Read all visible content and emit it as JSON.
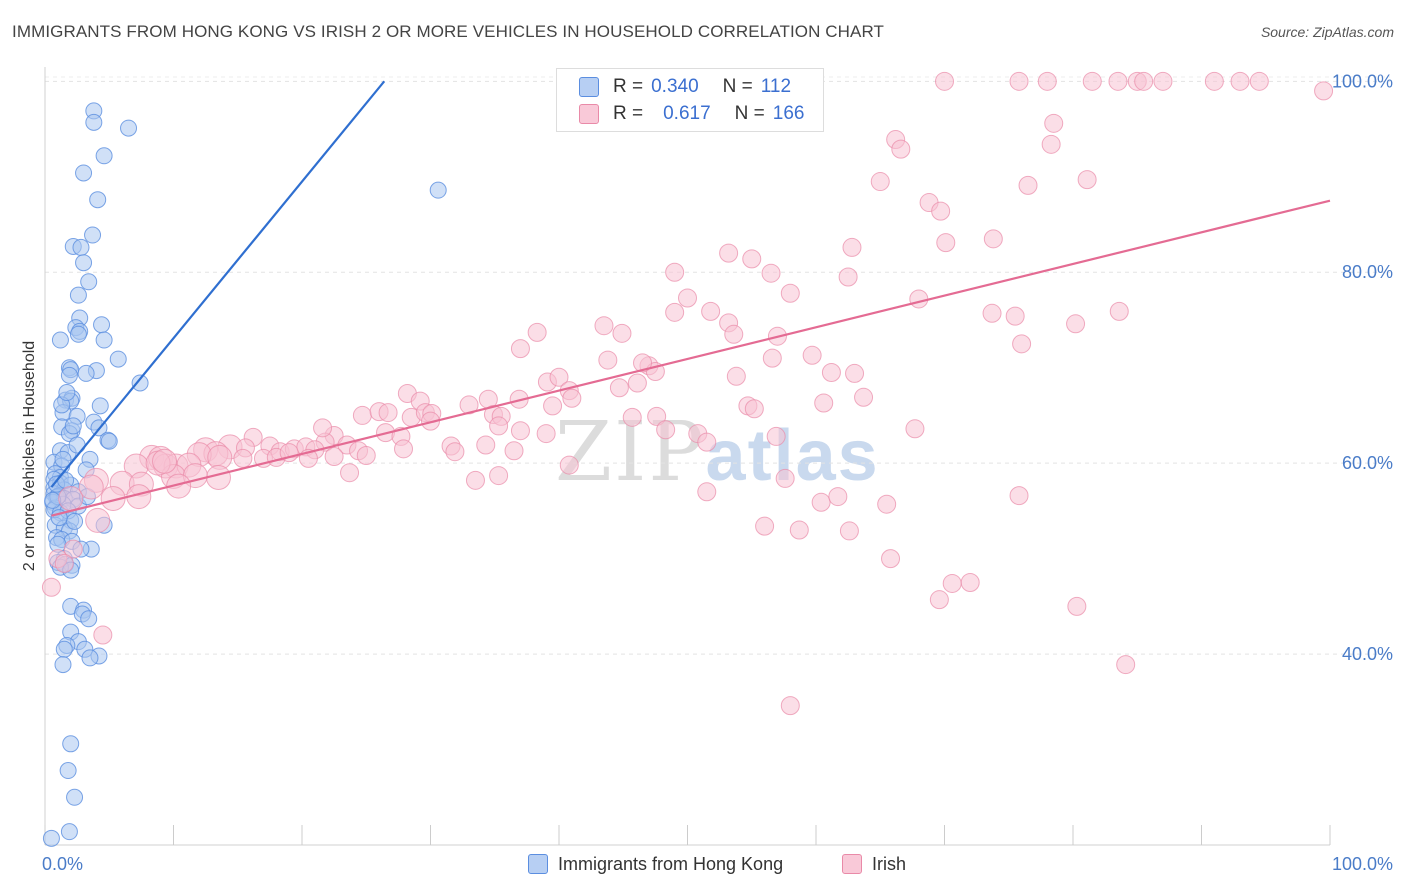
{
  "title": "IMMIGRANTS FROM HONG KONG VS IRISH 2 OR MORE VEHICLES IN HOUSEHOLD CORRELATION CHART",
  "source": "Source: ZipAtlas.com",
  "watermark": {
    "zip": "ZIP",
    "atlas": "atlas"
  },
  "colors": {
    "blue": "#5b8ee0",
    "blue_fill": "#aac6f0",
    "pink": "#e98aa8",
    "pink_fill": "#f7c3d3",
    "blue_line": "#2f6fd0",
    "pink_line": "#e46b93"
  },
  "legend": {
    "blue": {
      "r_label": "R =",
      "r_value": "0.340",
      "n_label": "N =",
      "n_value": "112"
    },
    "pink": {
      "r_label": "R =",
      "r_value": "0.617",
      "n_label": "N =",
      "n_value": "166"
    }
  },
  "bottom_legend": [
    "Immigrants from Hong Kong",
    "Irish"
  ],
  "chart_data": {
    "type": "scatter",
    "xlabel": "",
    "ylabel": "2 or more Vehicles in Household",
    "xlim": [
      0,
      100
    ],
    "ylim": [
      20,
      101.5
    ],
    "x_tick_labels": [
      "0.0%",
      "100.0%"
    ],
    "y_tick_labels": [
      "40.0%",
      "60.0%",
      "80.0%",
      "100.0%"
    ],
    "y_ticks": [
      40,
      60,
      80,
      100
    ],
    "grid": true,
    "legend_placement": "top-center",
    "series": [
      {
        "name": "Immigrants from Hong Kong",
        "r": 0.34,
        "n": 112,
        "trend": {
          "x": [
            0.5,
            26.4
          ],
          "y": [
            57.5,
            100
          ]
        },
        "points": [
          [
            3.8,
            96.9
          ],
          [
            3.8,
            95.7
          ],
          [
            6.5,
            95.1
          ],
          [
            4.6,
            92.2
          ],
          [
            3.0,
            90.4
          ],
          [
            4.1,
            87.6
          ],
          [
            30.6,
            88.6
          ],
          [
            3.7,
            83.9
          ],
          [
            2.2,
            82.7
          ],
          [
            2.8,
            82.6
          ],
          [
            3.0,
            81.0
          ],
          [
            3.4,
            79.0
          ],
          [
            2.6,
            77.6
          ],
          [
            2.7,
            75.2
          ],
          [
            2.4,
            74.2
          ],
          [
            4.4,
            74.5
          ],
          [
            2.7,
            73.8
          ],
          [
            2.6,
            73.5
          ],
          [
            1.2,
            72.9
          ],
          [
            4.6,
            72.9
          ],
          [
            5.7,
            70.9
          ],
          [
            1.9,
            70.0
          ],
          [
            2.0,
            69.8
          ],
          [
            4.0,
            69.7
          ],
          [
            1.9,
            69.2
          ],
          [
            3.2,
            69.4
          ],
          [
            7.4,
            68.4
          ],
          [
            1.6,
            66.6
          ],
          [
            2.1,
            66.8
          ],
          [
            2.0,
            66.5
          ],
          [
            4.3,
            66.0
          ],
          [
            1.4,
            65.3
          ],
          [
            2.5,
            64.9
          ],
          [
            3.8,
            64.3
          ],
          [
            1.3,
            63.8
          ],
          [
            4.2,
            63.7
          ],
          [
            2.1,
            63.4
          ],
          [
            1.9,
            63.1
          ],
          [
            4.9,
            62.4
          ],
          [
            5.0,
            62.3
          ],
          [
            1.2,
            61.3
          ],
          [
            1.8,
            61.1
          ],
          [
            3.5,
            60.4
          ],
          [
            0.7,
            60.1
          ],
          [
            1.3,
            59.7
          ],
          [
            3.2,
            59.3
          ],
          [
            0.8,
            58.9
          ],
          [
            1.2,
            58.5
          ],
          [
            0.7,
            58.3
          ],
          [
            1.2,
            57.9
          ],
          [
            2.0,
            57.7
          ],
          [
            0.7,
            57.4
          ],
          [
            1.5,
            57.2
          ],
          [
            2.6,
            57.0
          ],
          [
            0.7,
            56.8
          ],
          [
            1.1,
            56.6
          ],
          [
            0.9,
            56.4
          ],
          [
            1.5,
            56.3
          ],
          [
            2.2,
            56.2
          ],
          [
            0.6,
            55.9
          ],
          [
            1.4,
            55.7
          ],
          [
            2.6,
            55.5
          ],
          [
            0.8,
            55.3
          ],
          [
            0.7,
            55.1
          ],
          [
            1.2,
            54.8
          ],
          [
            2.0,
            54.0
          ],
          [
            4.6,
            53.5
          ],
          [
            0.8,
            53.5
          ],
          [
            1.5,
            53.2
          ],
          [
            1.9,
            52.9
          ],
          [
            0.9,
            52.2
          ],
          [
            1.3,
            52.0
          ],
          [
            2.1,
            51.8
          ],
          [
            1.0,
            51.5
          ],
          [
            3.6,
            51.0
          ],
          [
            2.8,
            51.0
          ],
          [
            1.5,
            50.0
          ],
          [
            1.0,
            49.6
          ],
          [
            1.6,
            49.4
          ],
          [
            2.1,
            49.3
          ],
          [
            1.2,
            49.1
          ],
          [
            2.0,
            48.8
          ],
          [
            2.0,
            45.0
          ],
          [
            3.0,
            44.6
          ],
          [
            2.9,
            44.2
          ],
          [
            3.4,
            43.7
          ],
          [
            2.0,
            42.3
          ],
          [
            2.6,
            41.3
          ],
          [
            1.7,
            40.9
          ],
          [
            1.5,
            40.5
          ],
          [
            3.1,
            40.5
          ],
          [
            4.2,
            39.8
          ],
          [
            3.5,
            39.6
          ],
          [
            1.4,
            38.9
          ],
          [
            2.0,
            30.6
          ],
          [
            1.8,
            27.8
          ],
          [
            2.3,
            25.0
          ],
          [
            1.9,
            21.4
          ],
          [
            0.5,
            20.7
          ],
          [
            1.3,
            66.1
          ],
          [
            2.5,
            61.9
          ],
          [
            1.0,
            56.5
          ],
          [
            1.8,
            55.0
          ],
          [
            3.3,
            56.5
          ],
          [
            0.9,
            57.8
          ],
          [
            1.6,
            58.2
          ],
          [
            2.3,
            53.9
          ],
          [
            1.1,
            54.3
          ],
          [
            0.6,
            56.1
          ],
          [
            1.4,
            60.4
          ],
          [
            2.2,
            63.9
          ],
          [
            1.7,
            67.4
          ]
        ]
      },
      {
        "name": "Irish",
        "r": 0.617,
        "n": 166,
        "trend": {
          "x": [
            0.5,
            100
          ],
          "y": [
            54.5,
            87.5
          ]
        },
        "points": [
          [
            70.0,
            100
          ],
          [
            75.8,
            100
          ],
          [
            78.0,
            100
          ],
          [
            81.5,
            100
          ],
          [
            83.5,
            100
          ],
          [
            85.0,
            100
          ],
          [
            85.5,
            100
          ],
          [
            87.0,
            100
          ],
          [
            91.0,
            100
          ],
          [
            93.0,
            100
          ],
          [
            94.5,
            100
          ],
          [
            99.5,
            99.0
          ],
          [
            66.2,
            93.9
          ],
          [
            66.6,
            92.9
          ],
          [
            78.5,
            95.6
          ],
          [
            78.3,
            93.4
          ],
          [
            65.0,
            89.5
          ],
          [
            76.5,
            89.1
          ],
          [
            81.1,
            89.7
          ],
          [
            68.8,
            87.3
          ],
          [
            69.7,
            86.4
          ],
          [
            70.1,
            83.1
          ],
          [
            73.8,
            83.5
          ],
          [
            62.8,
            82.6
          ],
          [
            53.2,
            82.0
          ],
          [
            55.0,
            81.4
          ],
          [
            49.0,
            80.0
          ],
          [
            56.5,
            79.9
          ],
          [
            62.5,
            79.5
          ],
          [
            68.0,
            77.2
          ],
          [
            58.0,
            77.8
          ],
          [
            50.0,
            77.3
          ],
          [
            49.0,
            75.8
          ],
          [
            51.8,
            75.9
          ],
          [
            73.7,
            75.7
          ],
          [
            75.5,
            75.4
          ],
          [
            80.2,
            74.6
          ],
          [
            76.0,
            72.5
          ],
          [
            83.6,
            75.9
          ],
          [
            43.5,
            74.4
          ],
          [
            44.9,
            73.6
          ],
          [
            53.2,
            74.7
          ],
          [
            38.3,
            73.7
          ],
          [
            57.0,
            73.3
          ],
          [
            37.0,
            72.0
          ],
          [
            53.6,
            73.5
          ],
          [
            59.7,
            71.3
          ],
          [
            43.8,
            70.8
          ],
          [
            56.6,
            71.0
          ],
          [
            47.0,
            70.2
          ],
          [
            47.5,
            69.6
          ],
          [
            46.5,
            70.5
          ],
          [
            53.8,
            69.1
          ],
          [
            61.2,
            69.5
          ],
          [
            63.0,
            69.4
          ],
          [
            39.1,
            68.5
          ],
          [
            40.0,
            69.0
          ],
          [
            44.7,
            67.9
          ],
          [
            46.1,
            68.4
          ],
          [
            40.8,
            67.6
          ],
          [
            28.2,
            67.3
          ],
          [
            29.2,
            66.5
          ],
          [
            33.0,
            66.1
          ],
          [
            34.5,
            66.7
          ],
          [
            36.9,
            66.7
          ],
          [
            41.0,
            66.8
          ],
          [
            39.5,
            66.0
          ],
          [
            54.7,
            66.0
          ],
          [
            55.2,
            65.7
          ],
          [
            60.6,
            66.3
          ],
          [
            63.7,
            66.9
          ],
          [
            24.7,
            65.0
          ],
          [
            26.0,
            65.4
          ],
          [
            26.7,
            65.3
          ],
          [
            28.5,
            64.8
          ],
          [
            29.6,
            65.3
          ],
          [
            30.1,
            65.2
          ],
          [
            34.9,
            65.1
          ],
          [
            35.5,
            64.9
          ],
          [
            47.6,
            64.9
          ],
          [
            45.7,
            64.8
          ],
          [
            26.5,
            63.2
          ],
          [
            27.7,
            62.8
          ],
          [
            30.0,
            64.4
          ],
          [
            35.3,
            63.9
          ],
          [
            37.0,
            63.4
          ],
          [
            39.0,
            63.1
          ],
          [
            48.3,
            63.5
          ],
          [
            50.8,
            63.1
          ],
          [
            51.5,
            62.2
          ],
          [
            56.9,
            62.8
          ],
          [
            67.7,
            63.6
          ],
          [
            22.5,
            62.9
          ],
          [
            21.8,
            62.2
          ],
          [
            23.5,
            61.9
          ],
          [
            16.2,
            62.7
          ],
          [
            17.5,
            61.8
          ],
          [
            18.3,
            61.2
          ],
          [
            19.4,
            61.5
          ],
          [
            20.3,
            61.7
          ],
          [
            14.4,
            61.7
          ],
          [
            15.6,
            61.6
          ],
          [
            21.0,
            61.4
          ],
          [
            12.5,
            61.4
          ],
          [
            13.3,
            61.0
          ],
          [
            24.4,
            61.3
          ],
          [
            31.6,
            61.8
          ],
          [
            31.9,
            61.2
          ],
          [
            34.3,
            61.9
          ],
          [
            36.5,
            61.3
          ],
          [
            8.3,
            60.6
          ],
          [
            9.0,
            60.5
          ],
          [
            12.0,
            60.9
          ],
          [
            13.6,
            60.6
          ],
          [
            15.4,
            60.5
          ],
          [
            17.0,
            60.5
          ],
          [
            18.0,
            60.6
          ],
          [
            19.0,
            61.1
          ],
          [
            20.5,
            60.5
          ],
          [
            22.5,
            60.7
          ],
          [
            25.0,
            60.8
          ],
          [
            27.9,
            61.5
          ],
          [
            7.1,
            59.7
          ],
          [
            9.4,
            59.7
          ],
          [
            10.2,
            59.7
          ],
          [
            11.2,
            59.8
          ],
          [
            13.5,
            58.5
          ],
          [
            4.0,
            58.2
          ],
          [
            6.0,
            57.9
          ],
          [
            7.5,
            57.8
          ],
          [
            10.0,
            58.6
          ],
          [
            3.6,
            57.5
          ],
          [
            2.0,
            56.3
          ],
          [
            5.3,
            56.3
          ],
          [
            7.3,
            56.5
          ],
          [
            23.7,
            59.0
          ],
          [
            33.5,
            58.2
          ],
          [
            35.3,
            58.7
          ],
          [
            40.8,
            59.8
          ],
          [
            51.5,
            57.0
          ],
          [
            57.6,
            58.4
          ],
          [
            60.4,
            55.9
          ],
          [
            61.7,
            56.5
          ],
          [
            65.5,
            55.7
          ],
          [
            75.8,
            56.6
          ],
          [
            4.1,
            54.0
          ],
          [
            2.2,
            51.0
          ],
          [
            1.0,
            50.0
          ],
          [
            1.5,
            49.5
          ],
          [
            0.5,
            47.0
          ],
          [
            56.0,
            53.4
          ],
          [
            58.7,
            53.0
          ],
          [
            62.6,
            52.9
          ],
          [
            65.8,
            50.0
          ],
          [
            70.6,
            47.4
          ],
          [
            72.0,
            47.5
          ],
          [
            69.6,
            45.7
          ],
          [
            80.3,
            45.0
          ],
          [
            84.1,
            38.9
          ],
          [
            4.5,
            42.0
          ],
          [
            58.0,
            34.6
          ],
          [
            8.8,
            60.0
          ],
          [
            11.7,
            58.7
          ],
          [
            9.3,
            60.2
          ],
          [
            10.4,
            57.6
          ],
          [
            21.6,
            63.7
          ]
        ]
      }
    ]
  }
}
